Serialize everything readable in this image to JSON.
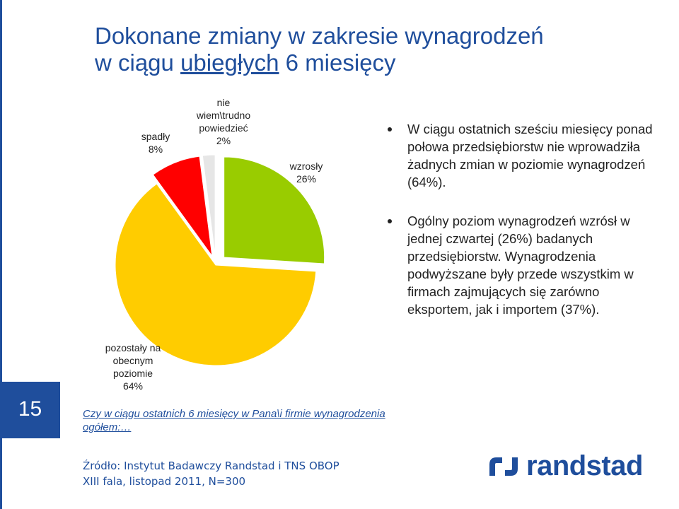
{
  "title": {
    "line1": "Dokonane zmiany w zakresie wynagrodzeń",
    "line2_pre": "w ciągu ",
    "line2_underlined": "ubiegłych",
    "line2_post": " 6 miesięcy"
  },
  "page_number": "15",
  "chart_data": {
    "type": "pie",
    "slices": [
      {
        "label": "wzrosły",
        "value": 26,
        "value_label": "26%",
        "color": "#99cc00"
      },
      {
        "label": "pozostały na obecnym poziomie",
        "value": 64,
        "value_label": "64%",
        "color": "#ffcc00"
      },
      {
        "label": "spadły",
        "value": 8,
        "value_label": "8%",
        "color": "#ff0000"
      },
      {
        "label": "nie wiem\\trudno powiedzieć",
        "value": 2,
        "value_label": "2%",
        "color": "#e6e6e6"
      }
    ],
    "label_lines": {
      "wzrosly": [
        "wzrosły",
        "26%"
      ],
      "pozostaly": [
        "pozostały na",
        "obecnym",
        "poziomie",
        "64%"
      ],
      "spadly": [
        "spadły",
        "8%"
      ],
      "niewiem": [
        "nie",
        "wiem\\trudno",
        "powiedzieć",
        "2%"
      ]
    }
  },
  "bullets": [
    "W ciągu ostatnich sześciu miesięcy ponad połowa przedsiębiorstw nie wprowadziła żadnych zmian w poziomie wynagrodzeń (64%).",
    "Ogólny poziom wynagrodzeń wzrósł w jednej czwartej (26%) badanych przedsiębiorstw. Wynagrodzenia podwyższane były przede wszystkim w firmach zajmujących się zarówno eksportem, jak i importem (37%)."
  ],
  "question": "Czy w ciągu ostatnich  6 miesięcy  w Pana\\i firmie wynagrodzenia ogółem:…",
  "source": {
    "line1": "Źródło: Instytut Badawczy Randstad i TNS OBOP",
    "line2": "XIII fala, listopad 2011, N=300"
  },
  "logo": {
    "word": "randstad",
    "color": "#1f4e9c"
  }
}
